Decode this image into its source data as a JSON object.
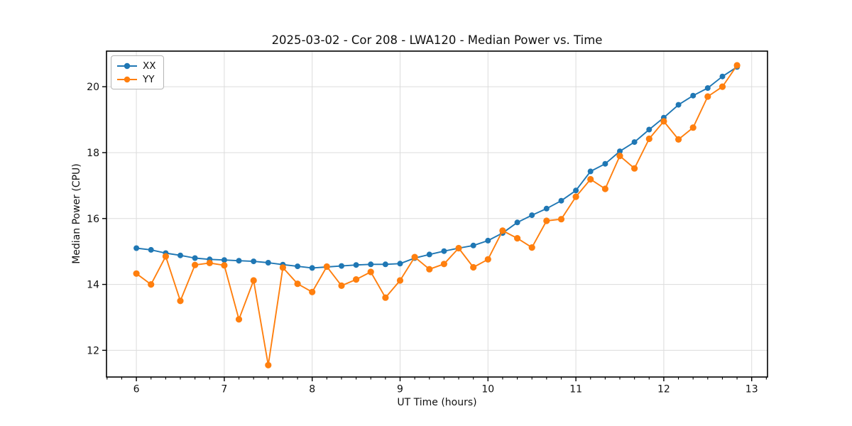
{
  "chart_data": {
    "type": "line",
    "title": "2025-03-02 - Cor 208 - LWA120 - Median Power vs. Time",
    "xlabel": "UT Time (hours)",
    "ylabel": "Median Power (CPU)",
    "xlim": [
      5.66,
      13.18
    ],
    "ylim": [
      11.19,
      21.08
    ],
    "x_major_ticks": [
      6,
      7,
      8,
      9,
      10,
      11,
      12,
      13
    ],
    "y_major_ticks": [
      12,
      14,
      16,
      18,
      20
    ],
    "x_minor_step": 0.166667,
    "grid": true,
    "grid_color": "#dcdcdc",
    "legend_position": "upper left",
    "x": [
      6.0,
      6.1667,
      6.3333,
      6.5,
      6.6667,
      6.8333,
      7.0,
      7.1667,
      7.3333,
      7.5,
      7.6667,
      7.8333,
      8.0,
      8.1667,
      8.3333,
      8.5,
      8.6667,
      8.8333,
      9.0,
      9.1667,
      9.3333,
      9.5,
      9.6667,
      9.8333,
      10.0,
      10.1667,
      10.3333,
      10.5,
      10.6667,
      10.8333,
      11.0,
      11.1667,
      11.3333,
      11.5,
      11.6667,
      11.8333,
      12.0,
      12.1667,
      12.3333,
      12.5,
      12.6667,
      12.8333
    ],
    "series": [
      {
        "name": "XX",
        "color": "#1f77b4",
        "marker_radius": 4.0,
        "values": [
          15.1,
          15.05,
          14.95,
          14.88,
          14.8,
          14.76,
          14.74,
          14.72,
          14.7,
          14.66,
          14.6,
          14.55,
          14.5,
          14.53,
          14.56,
          14.59,
          14.61,
          14.61,
          14.63,
          14.8,
          14.91,
          15.01,
          15.1,
          15.18,
          15.33,
          15.56,
          15.88,
          16.1,
          16.3,
          16.54,
          16.85,
          17.43,
          17.66,
          18.04,
          18.32,
          18.7,
          19.06,
          19.45,
          19.73,
          19.96,
          20.31,
          20.6
        ]
      },
      {
        "name": "YY",
        "color": "#ff7f0e",
        "marker_radius": 4.6,
        "values": [
          14.33,
          14.0,
          14.85,
          13.5,
          14.59,
          14.65,
          14.58,
          12.94,
          14.12,
          11.55,
          14.51,
          14.02,
          13.77,
          14.54,
          13.96,
          14.15,
          14.38,
          13.6,
          14.12,
          14.83,
          14.46,
          14.62,
          15.1,
          14.52,
          14.76,
          15.63,
          15.4,
          15.12,
          15.93,
          15.98,
          16.66,
          17.19,
          16.9,
          17.9,
          17.52,
          18.42,
          18.95,
          18.4,
          18.76,
          19.7,
          20.0,
          20.65
        ]
      }
    ]
  }
}
